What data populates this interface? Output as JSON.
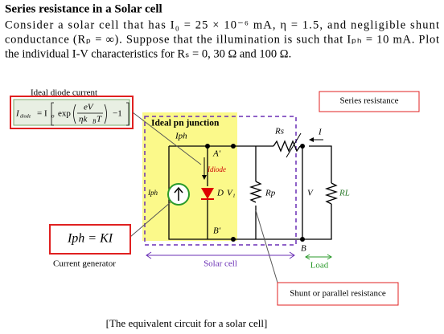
{
  "header": {
    "title": "Series resistance in a Solar cell"
  },
  "problem": {
    "lines": [
      "Consider a solar cell that has I₀ = 25 × 10⁻⁶ mA, η = 1.5, and negligible shunt",
      "conductance (Rₚ = ∞). Suppose that the illumination is such that Iₚₕ = 10 mA. Plot",
      "the individual I-V characteristics for Rₛ = 0, 30 Ω and 100 Ω."
    ]
  },
  "figure": {
    "diode_title": "Ideal diode current",
    "equation": {
      "lhs": "I",
      "lhs_sub": "diode",
      "eq": "= I",
      "i0_sub": "o",
      "exp": "exp",
      "num": "eV",
      "den": "ηk",
      "den_sub": "B",
      "den_end": "T",
      "minus": "−1"
    },
    "series_resistance": "Series resistance",
    "junction": "Ideal pn junction",
    "iph": "Iph",
    "a_prime": "A'",
    "idiode": "Idiode",
    "d": "D",
    "v1": "V₁",
    "rs": "Rs",
    "i": "I",
    "rp": "Rp",
    "v": "V",
    "rl": "RL",
    "iph_src": "Iph",
    "b_prime": "B'",
    "b": "B",
    "generator_eq": "Iph = KI",
    "generator": "Current generator",
    "solar_cell": "Solar cell",
    "load": "Load",
    "shunt": "Shunt or parallel resistance",
    "caption": "[The equivalent circuit for a solar cell]"
  }
}
